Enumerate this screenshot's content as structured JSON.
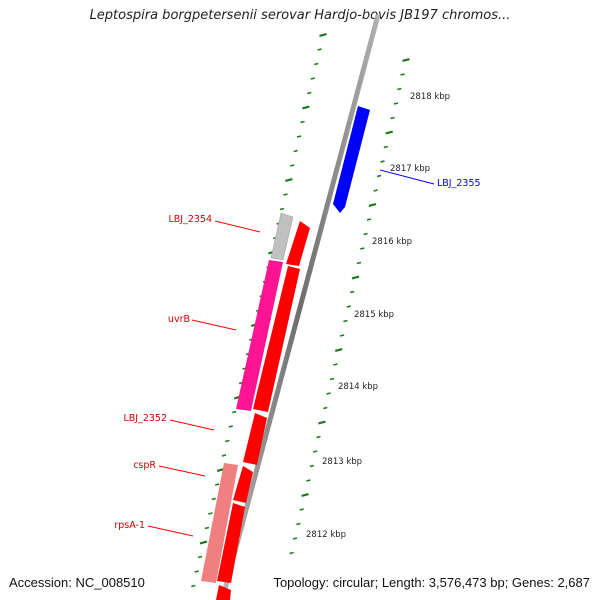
{
  "title": "Leptospira borgpetersenii serovar Hardjo-bovis JB197 chromos...",
  "footer": {
    "accession": "Accession: NC_008510",
    "summary": "Topology: circular; Length: 3,576,473 bp; Genes: 2,687"
  },
  "colors": {
    "reverse_gene": "#ff0000",
    "forward_gene": "#0000ff",
    "hypothetical": "#c0c0c0",
    "uvrB": "#ff1493",
    "rpsA1": "#f08080",
    "ticks": "#1a7a1a",
    "backbone": "#808080"
  },
  "kbp_labels": [
    "2818 kbp",
    "2817 kbp",
    "2816 kbp",
    "2815 kbp",
    "2814 kbp",
    "2813 kbp",
    "2812 kbp"
  ],
  "genes": [
    {
      "name": "LBJ_2355",
      "strand": "forward",
      "color": "#0000ff"
    },
    {
      "name": "LBJ_2354",
      "strand": "reverse",
      "color": "#ff0000"
    },
    {
      "name": "uvrB",
      "strand": "reverse",
      "color": "#ff0000"
    },
    {
      "name": "LBJ_2352",
      "strand": "reverse",
      "color": "#ff0000"
    },
    {
      "name": "cspR",
      "strand": "reverse",
      "color": "#ff0000"
    },
    {
      "name": "rpsA-1",
      "strand": "reverse",
      "color": "#ff0000"
    }
  ]
}
